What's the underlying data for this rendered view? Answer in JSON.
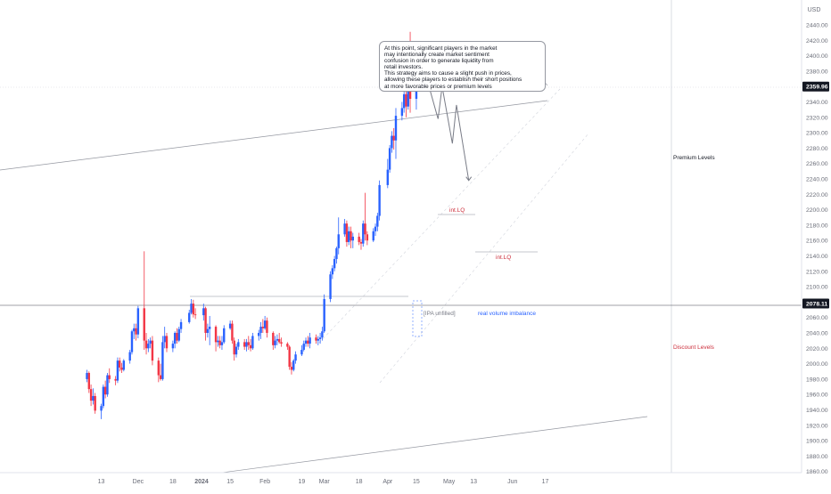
{
  "chart_data": {
    "type": "candlestick",
    "currency": "USD",
    "y_ticks": [
      1860,
      1880,
      1900,
      1920,
      1940,
      1960,
      1980,
      2000,
      2020,
      2040,
      2060,
      2080,
      2100,
      2120,
      2140,
      2160,
      2180,
      2200,
      2220,
      2240,
      2260,
      2280,
      2300,
      2320,
      2340,
      2360,
      2380,
      2400,
      2420,
      2440
    ],
    "y_tick_labels": [
      "1860.00",
      "1880.00",
      "1900.00",
      "1920.00",
      "1940.00",
      "1960.00",
      "1980.00",
      "2000.00",
      "2020.00",
      "2040.00",
      "2060.00",
      "2080.00",
      "2100.00",
      "2120.00",
      "2140.00",
      "2160.00",
      "2180.00",
      "2200.00",
      "2220.00",
      "2240.00",
      "2260.00",
      "2280.00",
      "2300.00",
      "2320.00",
      "2340.00",
      "2360.00",
      "2380.00",
      "2400.00",
      "2420.00",
      "2440.00"
    ],
    "ylim": [
      1856,
      2455
    ],
    "x_labels": [
      {
        "label": "13",
        "date": "2023-11-13"
      },
      {
        "label": "Dec",
        "date": "2023-12-01"
      },
      {
        "label": "18",
        "date": "2023-12-18"
      },
      {
        "label": "2024",
        "date": "2024-01-01"
      },
      {
        "label": "15",
        "date": "2024-01-15"
      },
      {
        "label": "Feb",
        "date": "2024-02-01"
      },
      {
        "label": "19",
        "date": "2024-02-19"
      },
      {
        "label": "Mar",
        "date": "2024-03-01"
      },
      {
        "label": "18",
        "date": "2024-03-18"
      },
      {
        "label": "Apr",
        "date": "2024-04-01"
      },
      {
        "label": "15",
        "date": "2024-04-15"
      },
      {
        "label": "May",
        "date": "2024-05-01"
      },
      {
        "label": "13",
        "date": "2024-05-13"
      },
      {
        "label": "Jun",
        "date": "2024-06-01"
      },
      {
        "label": "17",
        "date": "2024-06-17"
      }
    ],
    "price_markers": [
      {
        "label": "2359.96",
        "value": 2359.96
      },
      {
        "label": "2078.11",
        "value": 2078.11
      }
    ],
    "ohlc": [
      [
        "2023-11-06",
        1980,
        1992,
        1976,
        1988
      ],
      [
        "2023-11-07",
        1988,
        1990,
        1962,
        1967
      ],
      [
        "2023-11-08",
        1967,
        1973,
        1945,
        1952
      ],
      [
        "2023-11-09",
        1952,
        1968,
        1947,
        1958
      ],
      [
        "2023-11-10",
        1958,
        1962,
        1935,
        1939
      ],
      [
        "2023-11-13",
        1939,
        1948,
        1928,
        1945
      ],
      [
        "2023-11-14",
        1945,
        1973,
        1942,
        1970
      ],
      [
        "2023-11-15",
        1970,
        1978,
        1955,
        1960
      ],
      [
        "2023-11-16",
        1960,
        1988,
        1957,
        1985
      ],
      [
        "2023-11-17",
        1985,
        1994,
        1975,
        1980
      ],
      [
        "2023-11-20",
        1980,
        1984,
        1972,
        1978
      ],
      [
        "2023-11-21",
        1978,
        2008,
        1975,
        2004
      ],
      [
        "2023-11-22",
        2004,
        2008,
        1990,
        1995
      ],
      [
        "2023-11-23",
        1995,
        2001,
        1988,
        1992
      ],
      [
        "2023-11-24",
        1992,
        2006,
        1990,
        2004
      ],
      [
        "2023-11-27",
        2004,
        2018,
        2000,
        2015
      ],
      [
        "2023-11-28",
        2015,
        2044,
        2012,
        2042
      ],
      [
        "2023-11-29",
        2042,
        2052,
        2032,
        2046
      ],
      [
        "2023-11-30",
        2046,
        2052,
        2030,
        2038
      ],
      [
        "2023-12-01",
        2038,
        2075,
        2033,
        2072
      ],
      [
        "2023-12-04",
        2072,
        2146,
        2018,
        2030
      ],
      [
        "2023-12-05",
        2030,
        2040,
        2012,
        2020
      ],
      [
        "2023-12-06",
        2020,
        2032,
        2015,
        2026
      ],
      [
        "2023-12-07",
        2026,
        2034,
        2020,
        2030
      ],
      [
        "2023-12-08",
        2030,
        2036,
        1998,
        2004
      ],
      [
        "2023-12-11",
        2004,
        2008,
        1976,
        1985
      ],
      [
        "2023-12-12",
        1985,
        2000,
        1978,
        1980
      ],
      [
        "2023-12-13",
        1980,
        2036,
        1978,
        2028
      ],
      [
        "2023-12-14",
        2028,
        2048,
        2020,
        2036
      ],
      [
        "2023-12-15",
        2036,
        2040,
        2015,
        2020
      ],
      [
        "2023-12-18",
        2020,
        2030,
        2015,
        2026
      ],
      [
        "2023-12-19",
        2026,
        2042,
        2020,
        2040
      ],
      [
        "2023-12-20",
        2040,
        2046,
        2026,
        2030
      ],
      [
        "2023-12-21",
        2030,
        2048,
        2028,
        2045
      ],
      [
        "2023-12-22",
        2045,
        2058,
        2040,
        2054
      ],
      [
        "2023-12-26",
        2054,
        2070,
        2052,
        2066
      ],
      [
        "2023-12-27",
        2066,
        2084,
        2064,
        2078
      ],
      [
        "2023-12-28",
        2078,
        2083,
        2060,
        2064
      ],
      [
        "2023-12-29",
        2064,
        2072,
        2058,
        2063
      ],
      [
        "2024-01-02",
        2063,
        2078,
        2056,
        2072
      ],
      [
        "2024-01-03",
        2072,
        2074,
        2030,
        2040
      ],
      [
        "2024-01-04",
        2040,
        2052,
        2034,
        2045
      ],
      [
        "2024-01-05",
        2045,
        2062,
        2024,
        2048
      ],
      [
        "2024-01-08",
        2048,
        2050,
        2016,
        2028
      ],
      [
        "2024-01-09",
        2028,
        2036,
        2022,
        2030
      ],
      [
        "2024-01-10",
        2030,
        2036,
        2020,
        2024
      ],
      [
        "2024-01-11",
        2024,
        2036,
        2018,
        2028
      ],
      [
        "2024-01-12",
        2028,
        2050,
        2026,
        2046
      ],
      [
        "2024-01-15",
        2046,
        2056,
        2044,
        2052
      ],
      [
        "2024-01-16",
        2052,
        2056,
        2026,
        2030
      ],
      [
        "2024-01-17",
        2030,
        2034,
        2004,
        2012
      ],
      [
        "2024-01-18",
        2012,
        2026,
        2008,
        2022
      ],
      [
        "2024-01-19",
        2022,
        2032,
        2018,
        2028
      ],
      [
        "2024-01-22",
        2028,
        2032,
        2018,
        2022
      ],
      [
        "2024-01-23",
        2022,
        2032,
        2016,
        2028
      ],
      [
        "2024-01-24",
        2028,
        2036,
        2018,
        2024
      ],
      [
        "2024-01-25",
        2024,
        2032,
        2016,
        2020
      ],
      [
        "2024-01-26",
        2020,
        2040,
        2018,
        2036
      ],
      [
        "2024-01-29",
        2036,
        2044,
        2030,
        2040
      ],
      [
        "2024-01-30",
        2040,
        2054,
        2032,
        2048
      ],
      [
        "2024-01-31",
        2048,
        2058,
        2040,
        2046
      ],
      [
        "2024-02-01",
        2046,
        2062,
        2044,
        2056
      ],
      [
        "2024-02-02",
        2056,
        2060,
        2034,
        2040
      ],
      [
        "2024-02-05",
        2040,
        2042,
        2018,
        2024
      ],
      [
        "2024-02-06",
        2024,
        2036,
        2020,
        2030
      ],
      [
        "2024-02-07",
        2030,
        2038,
        2024,
        2032
      ],
      [
        "2024-02-08",
        2032,
        2040,
        2026,
        2028
      ],
      [
        "2024-02-09",
        2028,
        2034,
        2022,
        2026
      ],
      [
        "2024-02-12",
        2026,
        2028,
        2018,
        2022
      ],
      [
        "2024-02-13",
        2022,
        2024,
        1992,
        1996
      ],
      [
        "2024-02-14",
        1996,
        2002,
        1986,
        1992
      ],
      [
        "2024-02-15",
        1992,
        2006,
        1990,
        2004
      ],
      [
        "2024-02-16",
        2004,
        2016,
        2000,
        2012
      ],
      [
        "2024-02-19",
        2012,
        2024,
        2010,
        2018
      ],
      [
        "2024-02-20",
        2018,
        2030,
        2016,
        2026
      ],
      [
        "2024-02-21",
        2026,
        2034,
        2022,
        2030
      ],
      [
        "2024-02-22",
        2030,
        2036,
        2022,
        2026
      ],
      [
        "2024-02-23",
        2026,
        2040,
        2020,
        2034
      ],
      [
        "2024-02-26",
        2034,
        2038,
        2026,
        2030
      ],
      [
        "2024-02-27",
        2030,
        2036,
        2024,
        2032
      ],
      [
        "2024-02-28",
        2032,
        2040,
        2026,
        2034
      ],
      [
        "2024-02-29",
        2034,
        2048,
        2030,
        2042
      ],
      [
        "2024-03-01",
        2042,
        2090,
        2040,
        2084
      ],
      [
        "2024-03-04",
        2084,
        2120,
        2080,
        2116
      ],
      [
        "2024-03-05",
        2116,
        2128,
        2110,
        2124
      ],
      [
        "2024-03-06",
        2124,
        2140,
        2120,
        2136
      ],
      [
        "2024-03-07",
        2136,
        2152,
        2130,
        2150
      ],
      [
        "2024-03-08",
        2150,
        2190,
        2142,
        2168
      ],
      [
        "2024-03-11",
        2168,
        2188,
        2165,
        2182
      ],
      [
        "2024-03-12",
        2182,
        2186,
        2152,
        2158
      ],
      [
        "2024-03-13",
        2158,
        2178,
        2154,
        2172
      ],
      [
        "2024-03-14",
        2172,
        2178,
        2150,
        2160
      ],
      [
        "2024-03-15",
        2160,
        2170,
        2150,
        2165
      ],
      [
        "2024-03-18",
        2165,
        2170,
        2154,
        2158
      ],
      [
        "2024-03-19",
        2158,
        2162,
        2148,
        2156
      ],
      [
        "2024-03-20",
        2156,
        2186,
        2152,
        2182
      ],
      [
        "2024-03-21",
        2182,
        2222,
        2160,
        2168
      ],
      [
        "2024-03-22",
        2168,
        2172,
        2154,
        2160
      ],
      [
        "2024-03-25",
        2160,
        2176,
        2158,
        2172
      ],
      [
        "2024-03-26",
        2172,
        2182,
        2166,
        2178
      ],
      [
        "2024-03-27",
        2178,
        2196,
        2172,
        2192
      ],
      [
        "2024-03-28",
        2192,
        2238,
        2186,
        2232
      ],
      [
        "2024-04-01",
        2232,
        2266,
        2228,
        2252
      ],
      [
        "2024-04-02",
        2252,
        2284,
        2248,
        2280
      ],
      [
        "2024-04-03",
        2280,
        2302,
        2274,
        2296
      ],
      [
        "2024-04-04",
        2296,
        2306,
        2278,
        2290
      ],
      [
        "2024-04-05",
        2290,
        2332,
        2266,
        2322
      ],
      [
        "2024-04-08",
        2322,
        2340,
        2316,
        2332
      ],
      [
        "2024-04-09",
        2332,
        2354,
        2326,
        2350
      ],
      [
        "2024-04-10",
        2350,
        2360,
        2320,
        2334
      ],
      [
        "2024-04-11",
        2334,
        2376,
        2330,
        2372
      ],
      [
        "2024-04-12",
        2372,
        2431,
        2326,
        2344
      ],
      [
        "2024-04-15",
        2344,
        2396,
        2330,
        2384
      ],
      [
        "2024-04-16",
        2384,
        2398,
        2374,
        2392
      ],
      [
        "2024-04-17",
        2392,
        2396,
        2360,
        2374
      ],
      [
        "2024-04-18",
        2374,
        2398,
        2368,
        2392
      ],
      [
        "2024-04-19",
        2392,
        2398,
        2364,
        2359.96
      ]
    ],
    "annotations": {
      "callout_lines": [
        "At this point, significant players in the market",
        "may intentionally create market sentiment",
        "confusion in order to generate liquidity from",
        "retail investors.",
        "This strategy aims to cause a slight push in prices,",
        "allowing these players to establish their short positions",
        "at more favorable prices or premium levels"
      ],
      "int_lq_upper": "int.LQ",
      "int_lq_lower": "int.LQ",
      "ipa_unfilled": "[IPA unfilled]",
      "real_volume": "real volume imbalance",
      "premium_levels": "Premium Levels",
      "discount_levels": "Discount Levels"
    },
    "projected_path": [
      {
        "date": "2024-04-19",
        "y": 2356
      },
      {
        "date": "2024-04-23",
        "y": 2318
      },
      {
        "date": "2024-04-25",
        "y": 2360
      },
      {
        "date": "2024-04-30",
        "y": 2286
      },
      {
        "date": "2024-05-02",
        "y": 2336
      },
      {
        "date": "2024-05-08",
        "y": 2238
      }
    ],
    "colors": {
      "up": "#2962ff",
      "down": "#f23645",
      "grid": "#f0f3fa",
      "text": "#131722",
      "axis_text": "#6a6d78",
      "premium": "#131722",
      "discount": "#cc2f3c",
      "int_lq": "#cc2f3c",
      "real_volume": "#2962ff"
    }
  }
}
